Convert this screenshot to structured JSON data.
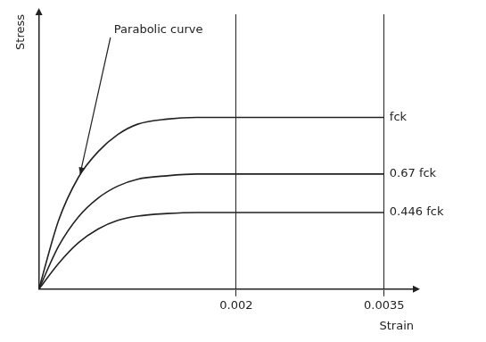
{
  "chart_data": {
    "type": "line",
    "x_label": "Strain",
    "y_label": "Stress",
    "annotation": "Parabolic curve",
    "x": [
      0,
      0.0002,
      0.0004,
      0.0006,
      0.0008,
      0.001,
      0.0013,
      0.0016,
      0.002,
      0.0035
    ],
    "series": [
      {
        "name": "fck",
        "color": "#222222",
        "values": [
          0,
          0.4,
          0.65,
          0.8,
          0.9,
          0.96,
          0.99,
          1,
          1,
          1
        ]
      },
      {
        "name": "0.67 fck",
        "color": "#222222",
        "values": [
          0,
          0.25,
          0.42,
          0.53,
          0.6,
          0.64,
          0.66,
          0.67,
          0.67,
          0.67
        ]
      },
      {
        "name": "0.446 fck",
        "color": "#222222",
        "values": [
          0,
          0.15,
          0.27,
          0.35,
          0.4,
          0.425,
          0.44,
          0.446,
          0.446,
          0.446
        ]
      }
    ],
    "xlim": [
      0,
      0.0038
    ],
    "xticks": [
      0.002,
      0.0035
    ],
    "ylim": [
      0,
      1.6
    ],
    "yticks": [],
    "grid": true,
    "tick_labels": "x"
  }
}
